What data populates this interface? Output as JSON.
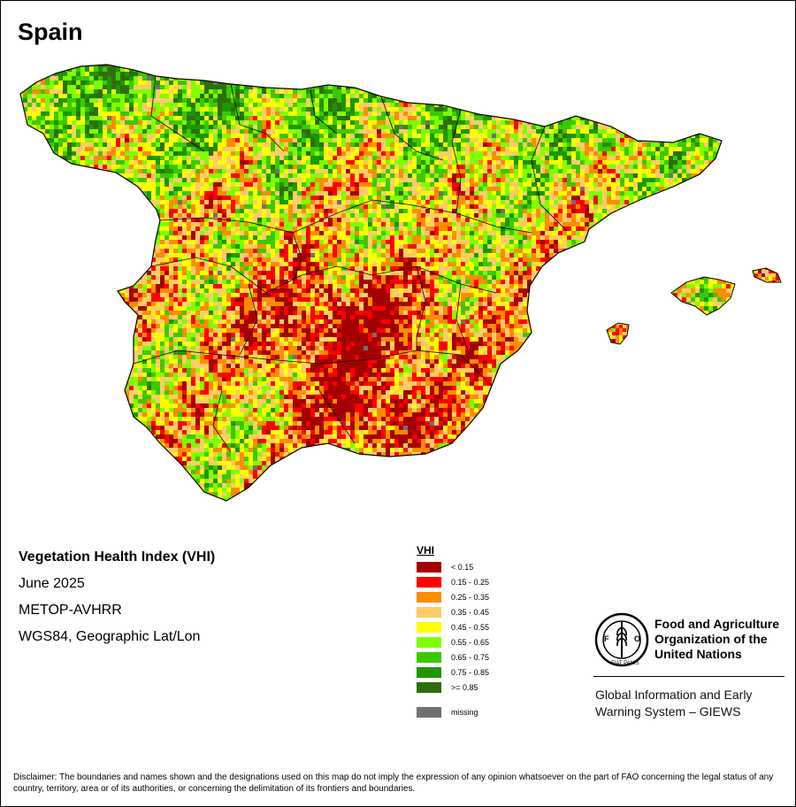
{
  "map": {
    "country": "Spain",
    "colors": {
      "sea": "#ffffff",
      "outline": "#000000",
      "vhi_lt_015": "#a50000",
      "vhi_015_025": "#ff0000",
      "vhi_025_035": "#ff8c00",
      "vhi_035_045": "#ffcc66",
      "vhi_045_055": "#ffff00",
      "vhi_055_065": "#7fff00",
      "vhi_065_075": "#3cc800",
      "vhi_075_085": "#1e9600",
      "vhi_ge_085": "#2d6e0a",
      "missing": "#707070"
    }
  },
  "info": {
    "title": "Vegetation Health Index (VHI)",
    "period": "June 2025",
    "sensor": "METOP-AVHRR",
    "projection": "WGS84, Geographic Lat/Lon"
  },
  "legend": {
    "title": "VHI",
    "items": [
      {
        "label": "< 0.15",
        "color": "#a50000"
      },
      {
        "label": "0.15 - 0.25",
        "color": "#ff0000"
      },
      {
        "label": "0.25 - 0.35",
        "color": "#ff8c00"
      },
      {
        "label": "0.35 - 0.45",
        "color": "#ffcc66"
      },
      {
        "label": "0.45 - 0.55",
        "color": "#ffff00"
      },
      {
        "label": "0.55 - 0.65",
        "color": "#7fff00"
      },
      {
        "label": "0.65 - 0.75",
        "color": "#3cc800"
      },
      {
        "label": "0.75 - 0.85",
        "color": "#1e9600"
      },
      {
        "label": ">= 0.85",
        "color": "#2d6e0a"
      }
    ],
    "missing": {
      "label": "missing",
      "color": "#707070"
    }
  },
  "fao": {
    "name_lines": [
      "Food and Agriculture",
      "Organization of the",
      "United Nations"
    ],
    "giews_lines": [
      "Global Information and Early",
      "Warning System – GIEWS"
    ],
    "logo_text": "FAO",
    "logo_motto": "FIAT PANIS"
  },
  "disclaimer": "Disclaimer: The boundaries and names shown and the designations used on this map do not imply the expression of any opinion whatsoever on the part of FAO concerning the legal status of any country, territory, area or of its authorities, or concerning the delimitation of its frontiers and boundaries."
}
